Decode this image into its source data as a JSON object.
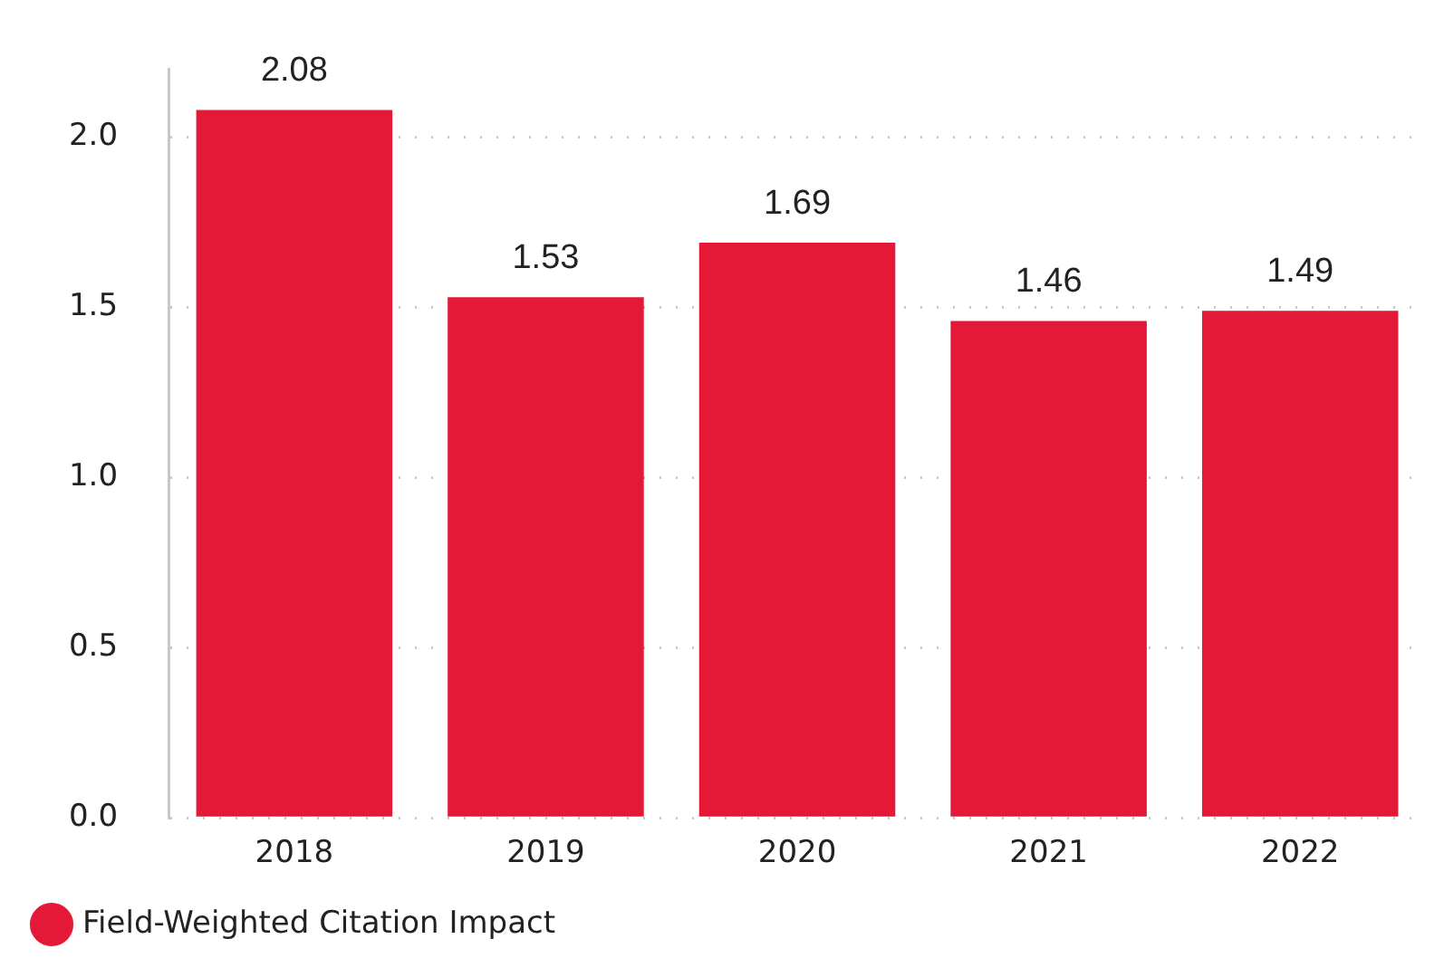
{
  "chart_data": {
    "type": "bar",
    "categories": [
      "2018",
      "2019",
      "2020",
      "2021",
      "2022"
    ],
    "series": [
      {
        "name": "Field-Weighted Citation Impact",
        "color": "#e31937",
        "values": [
          2.08,
          1.53,
          1.69,
          1.46,
          1.49
        ]
      }
    ],
    "ylim": [
      0,
      2.2
    ],
    "yticks": [
      {
        "value": 0,
        "label": "0.0"
      },
      {
        "value": 0.5,
        "label": "0.5"
      },
      {
        "value": 1,
        "label": "1.0"
      },
      {
        "value": 1.5,
        "label": "1.5"
      },
      {
        "value": 2,
        "label": "2.0"
      }
    ],
    "grid": "y",
    "legend": "bottom left",
    "data_labels": true
  }
}
